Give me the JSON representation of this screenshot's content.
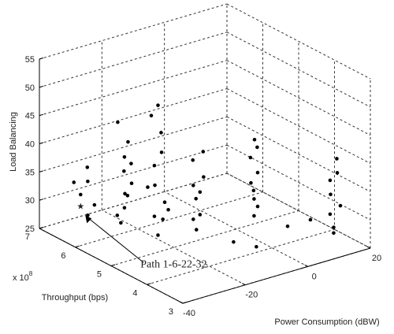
{
  "chart_data": {
    "type": "scatter3d",
    "xlabel": "Power Consumption (dBW)",
    "ylabel": "Throughput (bps)",
    "zlabel": "Load Balancing",
    "y_multiplier": {
      "base": "x 10",
      "exponent": "8"
    },
    "xlim": [
      -40,
      20
    ],
    "xticks": [
      -40,
      -20,
      0,
      20
    ],
    "ylim": [
      3,
      7
    ],
    "yticks": [
      3,
      4,
      5,
      6,
      7
    ],
    "zlim": [
      25,
      55
    ],
    "zticks": [
      25,
      30,
      35,
      40,
      45,
      50,
      55
    ],
    "grid": true,
    "color": "#000000",
    "series": [
      {
        "x": [
          -36,
          -36,
          -35,
          -37,
          -35,
          -36,
          -30,
          -30,
          -31,
          -29,
          -30,
          -30,
          -31,
          -29,
          -30,
          -30,
          -29,
          -25,
          -25,
          -24,
          -26,
          -25,
          -25,
          -24,
          -26,
          -25,
          -24,
          -26,
          -15,
          -15,
          -14,
          -16,
          -15,
          -15,
          -14,
          -16,
          -15,
          0,
          0,
          1,
          -1,
          0,
          0,
          1,
          -1,
          0,
          14,
          14,
          15,
          13,
          14,
          14,
          15,
          14,
          -10,
          -5,
          5,
          10,
          -20
        ],
        "y": [
          6.2,
          6.0,
          6.1,
          6.3,
          5.9,
          6.0,
          5.6,
          5.5,
          5.4,
          5.6,
          5.5,
          5.4,
          5.6,
          5.5,
          5.7,
          5.3,
          5.4,
          5.0,
          5.1,
          4.9,
          5.0,
          5.1,
          4.9,
          5.0,
          5.1,
          5.0,
          4.8,
          5.2,
          4.8,
          4.7,
          4.9,
          4.8,
          4.6,
          4.9,
          4.7,
          4.8,
          4.7,
          4.5,
          4.4,
          4.6,
          4.5,
          4.4,
          4.6,
          4.5,
          4.4,
          4.5,
          3.5,
          3.6,
          3.4,
          3.5,
          3.6,
          3.4,
          3.5,
          3.5,
          4.2,
          4.0,
          4.0,
          3.8,
          5.3
        ],
        "z": [
          33,
          36,
          38,
          35,
          32,
          30,
          29,
          32,
          35,
          38,
          41,
          44,
          47,
          34,
          30,
          37,
          40,
          28,
          31,
          34,
          37,
          40,
          43,
          46,
          49,
          51,
          33,
          36,
          28,
          31,
          33,
          36,
          38,
          40,
          42,
          30,
          35,
          29,
          31,
          33,
          35,
          37,
          39,
          41,
          43,
          32,
          28,
          30,
          32,
          34,
          36,
          38,
          40,
          27,
          27,
          26,
          28,
          29,
          29
        ]
      }
    ],
    "annotations": [
      {
        "text": "Path 1-6-22-32",
        "x": -36,
        "y": 6.2,
        "z": 31
      }
    ]
  }
}
